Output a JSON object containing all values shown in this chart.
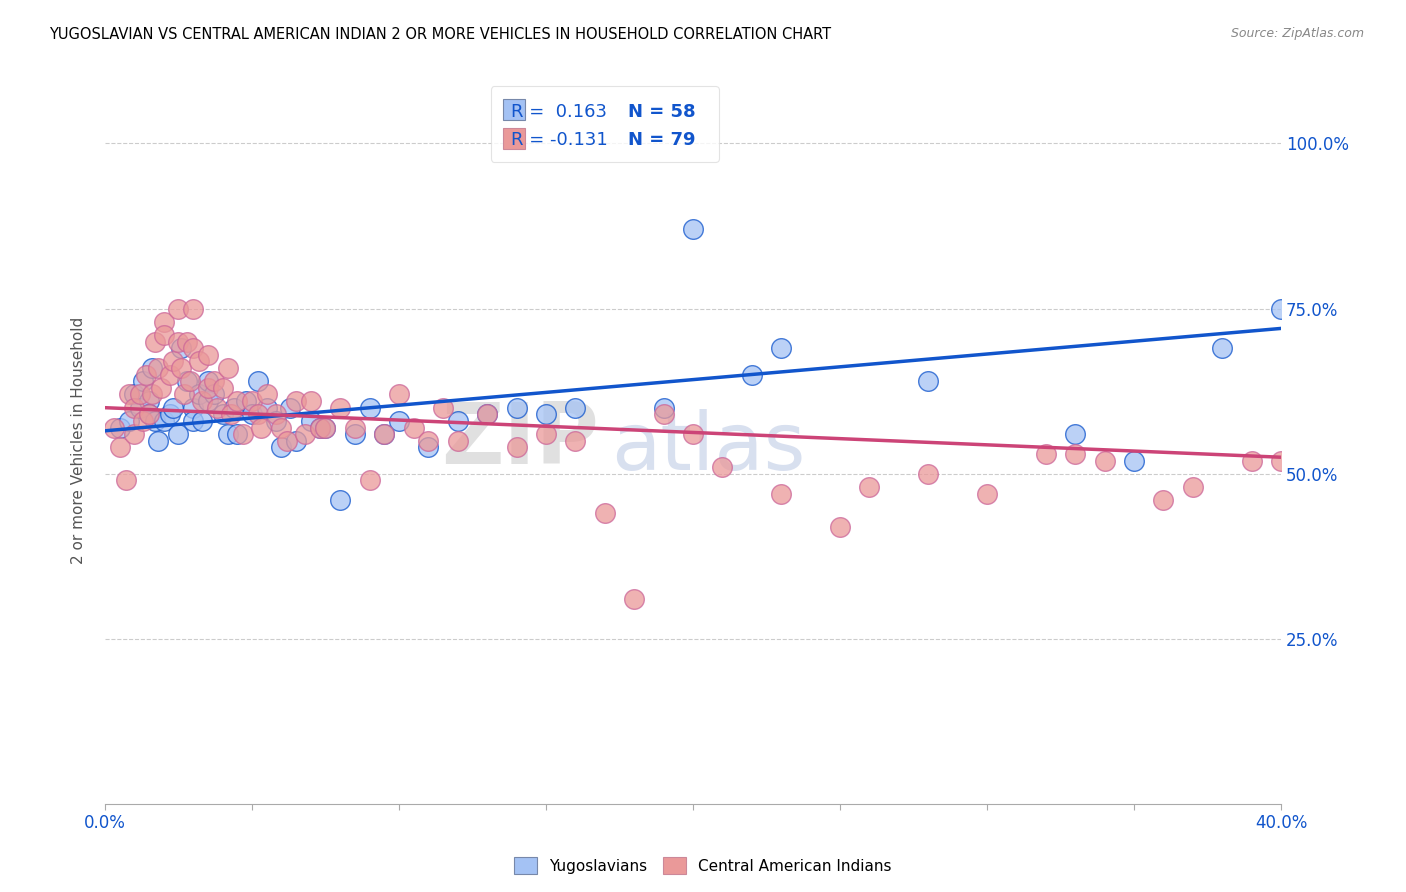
{
  "title": "YUGOSLAVIAN VS CENTRAL AMERICAN INDIAN 2 OR MORE VEHICLES IN HOUSEHOLD CORRELATION CHART",
  "source": "Source: ZipAtlas.com",
  "ylabel": "2 or more Vehicles in Household",
  "ytick_labels": [
    "25.0%",
    "50.0%",
    "75.0%",
    "100.0%"
  ],
  "ytick_values": [
    0.25,
    0.5,
    0.75,
    1.0
  ],
  "xlim": [
    0.0,
    0.4
  ],
  "ylim": [
    0.0,
    1.1
  ],
  "color_blue": "#a4c2f4",
  "color_pink": "#ea9999",
  "line_color_blue": "#1155cc",
  "line_color_pink": "#cc4477",
  "watermark_zip": "ZIP",
  "watermark_atlas": "atlas",
  "blue_scatter_x": [
    0.005,
    0.008,
    0.01,
    0.012,
    0.013,
    0.015,
    0.015,
    0.016,
    0.017,
    0.018,
    0.02,
    0.022,
    0.023,
    0.025,
    0.026,
    0.028,
    0.03,
    0.03,
    0.032,
    0.033,
    0.035,
    0.035,
    0.037,
    0.04,
    0.042,
    0.044,
    0.045,
    0.048,
    0.05,
    0.052,
    0.055,
    0.058,
    0.06,
    0.063,
    0.065,
    0.07,
    0.073,
    0.075,
    0.08,
    0.085,
    0.09,
    0.095,
    0.1,
    0.11,
    0.12,
    0.13,
    0.14,
    0.15,
    0.16,
    0.19,
    0.2,
    0.22,
    0.23,
    0.28,
    0.33,
    0.35,
    0.38,
    0.4
  ],
  "blue_scatter_y": [
    0.57,
    0.58,
    0.62,
    0.6,
    0.64,
    0.61,
    0.59,
    0.66,
    0.58,
    0.55,
    0.58,
    0.59,
    0.6,
    0.56,
    0.69,
    0.64,
    0.6,
    0.58,
    0.62,
    0.58,
    0.64,
    0.61,
    0.62,
    0.59,
    0.56,
    0.6,
    0.56,
    0.61,
    0.59,
    0.64,
    0.6,
    0.58,
    0.54,
    0.6,
    0.55,
    0.58,
    0.57,
    0.57,
    0.46,
    0.56,
    0.6,
    0.56,
    0.58,
    0.54,
    0.58,
    0.59,
    0.6,
    0.59,
    0.6,
    0.6,
    0.87,
    0.65,
    0.69,
    0.64,
    0.56,
    0.52,
    0.69,
    0.75
  ],
  "pink_scatter_x": [
    0.003,
    0.005,
    0.007,
    0.008,
    0.01,
    0.01,
    0.012,
    0.013,
    0.014,
    0.015,
    0.016,
    0.017,
    0.018,
    0.019,
    0.02,
    0.02,
    0.022,
    0.023,
    0.025,
    0.025,
    0.026,
    0.027,
    0.028,
    0.029,
    0.03,
    0.03,
    0.032,
    0.033,
    0.035,
    0.035,
    0.037,
    0.038,
    0.04,
    0.042,
    0.043,
    0.045,
    0.047,
    0.05,
    0.052,
    0.053,
    0.055,
    0.058,
    0.06,
    0.062,
    0.065,
    0.068,
    0.07,
    0.073,
    0.075,
    0.08,
    0.085,
    0.09,
    0.095,
    0.1,
    0.105,
    0.11,
    0.115,
    0.12,
    0.13,
    0.14,
    0.15,
    0.16,
    0.17,
    0.18,
    0.19,
    0.2,
    0.21,
    0.23,
    0.25,
    0.26,
    0.28,
    0.3,
    0.32,
    0.33,
    0.34,
    0.36,
    0.37,
    0.39,
    0.4
  ],
  "pink_scatter_y": [
    0.57,
    0.54,
    0.49,
    0.62,
    0.56,
    0.6,
    0.62,
    0.58,
    0.65,
    0.59,
    0.62,
    0.7,
    0.66,
    0.63,
    0.73,
    0.71,
    0.65,
    0.67,
    0.75,
    0.7,
    0.66,
    0.62,
    0.7,
    0.64,
    0.75,
    0.69,
    0.67,
    0.61,
    0.68,
    0.63,
    0.64,
    0.6,
    0.63,
    0.66,
    0.59,
    0.61,
    0.56,
    0.61,
    0.59,
    0.57,
    0.62,
    0.59,
    0.57,
    0.55,
    0.61,
    0.56,
    0.61,
    0.57,
    0.57,
    0.6,
    0.57,
    0.49,
    0.56,
    0.62,
    0.57,
    0.55,
    0.6,
    0.55,
    0.59,
    0.54,
    0.56,
    0.55,
    0.44,
    0.31,
    0.59,
    0.56,
    0.51,
    0.47,
    0.42,
    0.48,
    0.5,
    0.47,
    0.53,
    0.53,
    0.52,
    0.46,
    0.48,
    0.52,
    0.52
  ],
  "blue_trend_x": [
    0.0,
    0.4
  ],
  "blue_trend_y": [
    0.565,
    0.72
  ],
  "pink_trend_x": [
    0.0,
    0.4
  ],
  "pink_trend_y": [
    0.6,
    0.525
  ],
  "background_color": "#ffffff",
  "grid_color": "#cccccc",
  "title_color": "#000000",
  "axis_label_color": "#1155cc",
  "legend_r1": "R =  0.163",
  "legend_n1": "N = 58",
  "legend_r2": "R = -0.131",
  "legend_n2": "N = 79"
}
